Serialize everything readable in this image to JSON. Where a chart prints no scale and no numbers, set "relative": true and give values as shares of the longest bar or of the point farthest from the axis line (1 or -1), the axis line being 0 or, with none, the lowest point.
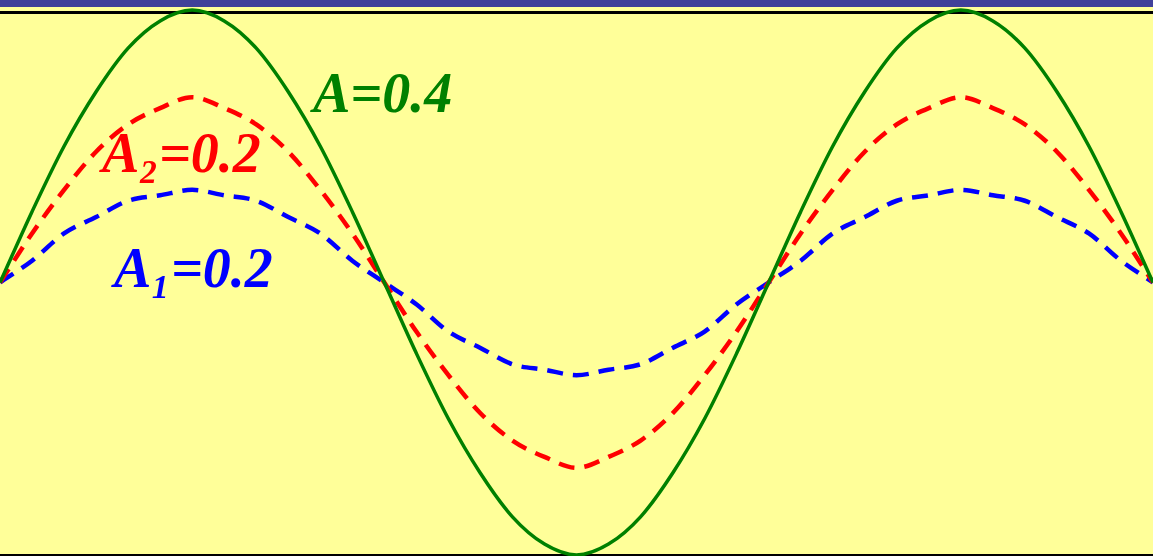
{
  "chart_data": {
    "type": "line",
    "relative": true,
    "marker": "none",
    "categories": [
      null,
      null,
      null,
      null,
      null,
      null,
      null,
      null,
      null,
      null,
      null,
      null,
      null,
      null,
      null,
      null,
      null,
      null,
      null,
      null,
      null,
      null,
      null,
      null,
      null,
      null,
      null,
      null,
      null,
      null,
      null,
      null,
      null,
      null,
      null,
      null,
      null
    ],
    "series": [
      {
        "name": "A₁=0.2",
        "color": "#0000ff",
        "line_style": "dashed",
        "values": [
          0.5,
          0.54,
          0.59,
          0.62,
          0.65,
          0.66,
          0.67,
          0.66,
          0.65,
          0.62,
          0.59,
          0.54,
          0.5,
          0.46,
          0.41,
          0.38,
          0.35,
          0.34,
          0.33,
          0.34,
          0.35,
          0.38,
          0.41,
          0.46,
          0.5,
          0.54,
          0.59,
          0.62,
          0.65,
          0.66,
          0.67,
          0.66,
          0.65,
          0.62,
          0.59,
          0.54,
          0.5
        ]
      },
      {
        "name": "A₂=0.2",
        "color": "#ff0000",
        "line_style": "dashed",
        "values": [
          0.5,
          0.59,
          0.67,
          0.74,
          0.79,
          0.82,
          0.84,
          0.82,
          0.79,
          0.74,
          0.67,
          0.59,
          0.5,
          0.41,
          0.33,
          0.26,
          0.21,
          0.18,
          0.16,
          0.18,
          0.21,
          0.26,
          0.33,
          0.41,
          0.5,
          0.59,
          0.67,
          0.74,
          0.79,
          0.82,
          0.84,
          0.82,
          0.79,
          0.74,
          0.67,
          0.59,
          0.5
        ]
      },
      {
        "name": "A=0.4",
        "color": "#008000",
        "line_style": "solid",
        "values": [
          0.5,
          0.63,
          0.75,
          0.85,
          0.93,
          0.98,
          1,
          0.98,
          0.93,
          0.85,
          0.75,
          0.63,
          0.5,
          0.37,
          0.25,
          0.15,
          0.07,
          0.02,
          0,
          0.02,
          0.07,
          0.15,
          0.25,
          0.37,
          0.5,
          0.63,
          0.75,
          0.85,
          0.93,
          0.98,
          1,
          0.98,
          0.93,
          0.85,
          0.75,
          0.63,
          0.5
        ]
      }
    ]
  }
}
